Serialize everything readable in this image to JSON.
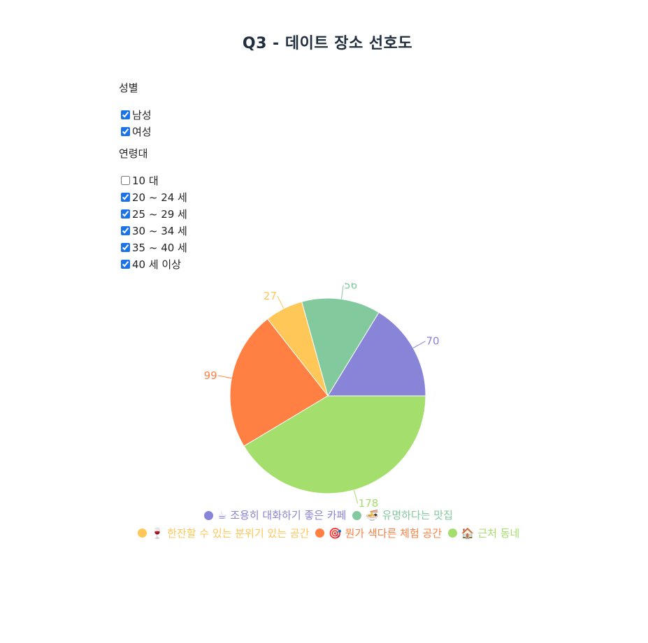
{
  "title": "Q3 - 데이트 장소 선호도",
  "filters": {
    "gender": {
      "title": "성별",
      "options": [
        {
          "label": "남성",
          "checked": true
        },
        {
          "label": "여성",
          "checked": true
        }
      ]
    },
    "age": {
      "title": "연령대",
      "options": [
        {
          "label": "10 대",
          "checked": false
        },
        {
          "label": "20 ~ 24 세",
          "checked": true
        },
        {
          "label": "25 ~ 29 세",
          "checked": true
        },
        {
          "label": "30 ~ 34 세",
          "checked": true
        },
        {
          "label": "35 ~ 40 세",
          "checked": true
        },
        {
          "label": "40 세 이상",
          "checked": true
        }
      ]
    }
  },
  "chart_data": {
    "type": "pie",
    "title": "Q3 - 데이트 장소 선호도",
    "legend_position": "bottom",
    "slices": [
      {
        "label": "☕ 조용히 대화하기 좋은 카페",
        "value": 70,
        "color": "#8884d8"
      },
      {
        "label": "🍜 유명하다는 맛집",
        "value": 56,
        "color": "#82ca9d"
      },
      {
        "label": "🍷 한잔할 수 있는 분위기 있는 공간",
        "value": 27,
        "color": "#ffc658"
      },
      {
        "label": "🎯 뭔가 색다른 체험 공간",
        "value": 99,
        "color": "#ff8042"
      },
      {
        "label": "🏠 근처 동네",
        "value": 178,
        "color": "#a4de6c"
      }
    ]
  }
}
